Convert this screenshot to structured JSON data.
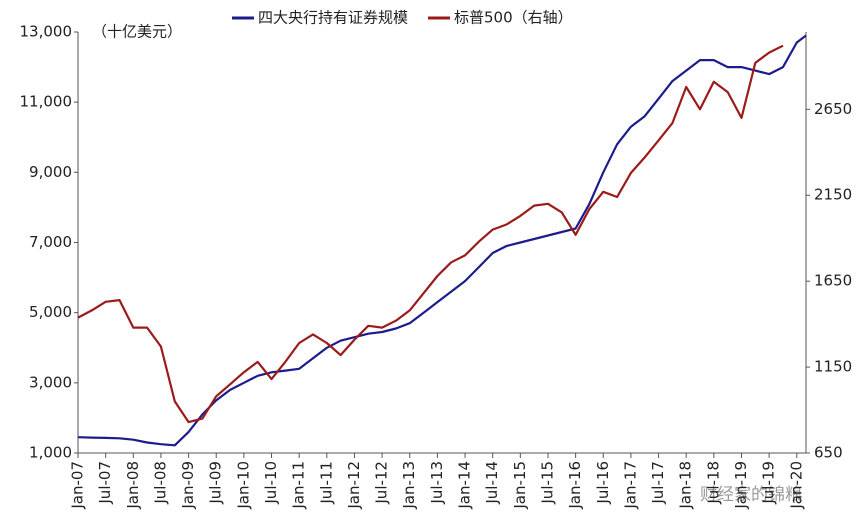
{
  "chart_data": {
    "type": "line",
    "unit_label": "（十亿美元）",
    "watermark": "财经家的锦粮",
    "x": [
      "Jan-07",
      "Apr-07",
      "Jul-07",
      "Oct-07",
      "Jan-08",
      "Apr-08",
      "Jul-08",
      "Oct-08",
      "Jan-09",
      "Apr-09",
      "Jul-09",
      "Oct-09",
      "Jan-10",
      "Apr-10",
      "Jul-10",
      "Oct-10",
      "Jan-11",
      "Apr-11",
      "Jul-11",
      "Oct-11",
      "Jan-12",
      "Apr-12",
      "Jul-12",
      "Oct-12",
      "Jan-13",
      "Apr-13",
      "Jul-13",
      "Oct-13",
      "Jan-14",
      "Apr-14",
      "Jul-14",
      "Oct-14",
      "Jan-15",
      "Apr-15",
      "Jul-15",
      "Oct-15",
      "Jan-16",
      "Apr-16",
      "Jul-16",
      "Oct-16",
      "Jan-17",
      "Apr-17",
      "Jul-17",
      "Oct-17",
      "Jan-18",
      "Apr-18",
      "Jul-18",
      "Oct-18",
      "Jan-19",
      "Apr-19",
      "Jul-19",
      "Oct-19",
      "Jan-20",
      "Mar-20"
    ],
    "xlim": [
      "Jan-07",
      "Mar-20"
    ],
    "xticks": [
      "Jan-07",
      "Jul-07",
      "Jan-08",
      "Jul-08",
      "Jan-09",
      "Jul-09",
      "Jan-10",
      "Jul-10",
      "Jan-11",
      "Jul-11",
      "Jan-12",
      "Jul-12",
      "Jan-13",
      "Jul-13",
      "Jan-14",
      "Jul-14",
      "Jan-15",
      "Jul-15",
      "Jan-16",
      "Jul-16",
      "Jan-17",
      "Jul-17",
      "Jan-18",
      "Jul-18",
      "Jan-19",
      "Jul-19",
      "Jan-20"
    ],
    "ylim": [
      1000,
      13000
    ],
    "yticks": [
      {
        "value": 1000,
        "label": "1,000"
      },
      {
        "value": 3000,
        "label": "3,000"
      },
      {
        "value": 5000,
        "label": "5,000"
      },
      {
        "value": 7000,
        "label": "7,000"
      },
      {
        "value": 9000,
        "label": "9,000"
      },
      {
        "value": 11000,
        "label": "11,000"
      },
      {
        "value": 13000,
        "label": "13,000"
      }
    ],
    "y2lim": [
      650,
      3100
    ],
    "y2ticks": [
      650,
      1150,
      1650,
      2150,
      2650
    ],
    "series": [
      {
        "name": "四大央行持有证券规模",
        "color": "#1c1c8c",
        "values": [
          1450,
          1440,
          1430,
          1420,
          1380,
          1300,
          1250,
          1220,
          1600,
          2100,
          2500,
          2800,
          3000,
          3200,
          3300,
          3350,
          3400,
          3700,
          4000,
          4200,
          4300,
          4400,
          4450,
          4550,
          4700,
          5000,
          5300,
          5600,
          5900,
          6300,
          6700,
          6900,
          7000,
          7100,
          7200,
          7300,
          7400,
          8100,
          9000,
          9800,
          10300,
          10600,
          11100,
          11600,
          11900,
          12200,
          12200,
          12000,
          12000,
          11900,
          11800,
          12000,
          12700,
          12900
        ]
      },
      {
        "name": "标普500（右轴）",
        "color": "#9b1b1b",
        "axis": "y2",
        "values": [
          1438,
          1480,
          1530,
          1540,
          1380,
          1380,
          1270,
          950,
          830,
          850,
          980,
          1050,
          1120,
          1180,
          1080,
          1180,
          1290,
          1340,
          1290,
          1220,
          1310,
          1390,
          1380,
          1420,
          1480,
          1580,
          1680,
          1760,
          1800,
          1880,
          1950,
          1980,
          2030,
          2090,
          2100,
          2050,
          1920,
          2070,
          2170,
          2140,
          2280,
          2370,
          2470,
          2570,
          2780,
          2650,
          2810,
          2750,
          2600,
          2920,
          2980,
          3020,
          null,
          null
        ]
      }
    ]
  }
}
